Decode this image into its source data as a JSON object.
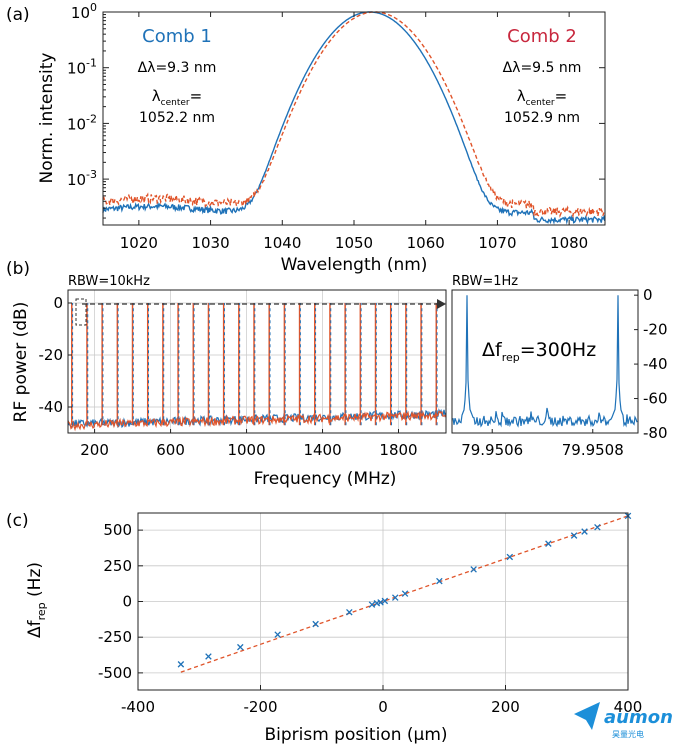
{
  "figure": {
    "panel_a_label": "(a)",
    "panel_b_label": "(b)",
    "panel_c_label": "(c)",
    "colors": {
      "comb1": "#1f72b8",
      "comb2": "#e0542a",
      "comb2_text": "#c8283e",
      "grid": "#c8c8c8",
      "axis": "#222222"
    },
    "watermark": {
      "text": "aumon",
      "subtext": "昊量光电",
      "color": "#1c8fd9"
    }
  },
  "chart_data": [
    {
      "id": "a",
      "type": "line",
      "xlabel": "Wavelength (nm)",
      "ylabel": "Norm. intensity",
      "xlim": [
        1015,
        1085
      ],
      "ylim": [
        0.00015,
        1
      ],
      "yscale": "log",
      "grid": false,
      "xticks": [
        1020,
        1030,
        1040,
        1050,
        1060,
        1070,
        1080
      ],
      "yticks": [
        {
          "value": 1,
          "base": "10",
          "exp": "0"
        },
        {
          "value": 0.1,
          "base": "10",
          "exp": "-1"
        },
        {
          "value": 0.01,
          "base": "10",
          "exp": "-2"
        },
        {
          "value": 0.001,
          "base": "10",
          "exp": "-3"
        }
      ],
      "series": [
        {
          "name": "Comb 1",
          "style": "solid",
          "center": 1052.2,
          "fwhm": 9.3,
          "floor": 0.00025,
          "bandwidth_label": "Δλ=9.3 nm",
          "center_label_main": "λ",
          "center_label_sub": "center",
          "center_label_eq": "=",
          "center_value": "1052.2 nm"
        },
        {
          "name": "Comb 2",
          "style": "dashed",
          "center": 1052.9,
          "fwhm": 9.5,
          "floor": 0.00035,
          "bandwidth_label": "Δλ=9.5 nm",
          "center_label_main": "λ",
          "center_label_sub": "center",
          "center_label_eq": "=",
          "center_value": "1052.9 nm"
        }
      ]
    },
    {
      "id": "b-left",
      "type": "line",
      "annotation": "RBW=10kHz",
      "xlabel": "Frequency (MHz)",
      "ylabel": "RF power (dB)",
      "xlim": [
        60,
        2050
      ],
      "ylim": [
        -50,
        5
      ],
      "grid": true,
      "xticks": [
        200,
        600,
        1000,
        1400,
        1800
      ],
      "yticks": [
        0,
        -20,
        -40
      ],
      "comb_line_spacing_mhz": 79.95,
      "comb_line_count": 25,
      "comb_line_peak_db": 0,
      "noise_floor_db": -47
    },
    {
      "id": "b-right",
      "type": "line",
      "annotation": "RBW=1Hz",
      "xlim": [
        79.95052,
        79.95089
      ],
      "ylim": [
        -80,
        3
      ],
      "grid": false,
      "xticks": [
        79.9506,
        79.9508
      ],
      "xtick_labels": [
        "79.9506",
        "79.9508"
      ],
      "yticks": [
        0,
        -20,
        -40,
        -60,
        -80
      ],
      "peaks_mhz": [
        79.95055,
        79.95085
      ],
      "noise_floor_db": -73,
      "delta_label_main": "Δf",
      "delta_label_sub": "rep",
      "delta_label_value": "=300Hz"
    },
    {
      "id": "c",
      "type": "scatter",
      "xlabel": "Biprism position (μm)",
      "ylabel_main": "Δf",
      "ylabel_sub": "rep",
      "ylabel_unit": " (Hz)",
      "xlim": [
        -400,
        400
      ],
      "ylim": [
        -620,
        620
      ],
      "grid": true,
      "xticks": [
        -400,
        -200,
        0,
        200,
        400
      ],
      "yticks": [
        500,
        250,
        0,
        -250,
        -500
      ],
      "ytick_labels": [
        "500",
        "250",
        "0",
        "-250",
        "-500"
      ],
      "fit": {
        "slope": 1.5,
        "intercept": 0
      },
      "points": [
        {
          "x": -330,
          "y": -440
        },
        {
          "x": -285,
          "y": -385
        },
        {
          "x": -233,
          "y": -320
        },
        {
          "x": -172,
          "y": -232
        },
        {
          "x": -110,
          "y": -158
        },
        {
          "x": -55,
          "y": -75
        },
        {
          "x": -18,
          "y": -22
        },
        {
          "x": -10,
          "y": -12
        },
        {
          "x": -4,
          "y": -6
        },
        {
          "x": 3,
          "y": 4
        },
        {
          "x": 20,
          "y": 27
        },
        {
          "x": 36,
          "y": 55
        },
        {
          "x": 92,
          "y": 143
        },
        {
          "x": 148,
          "y": 225
        },
        {
          "x": 207,
          "y": 312
        },
        {
          "x": 270,
          "y": 405
        },
        {
          "x": 312,
          "y": 462
        },
        {
          "x": 329,
          "y": 490
        },
        {
          "x": 350,
          "y": 520
        },
        {
          "x": 400,
          "y": 600
        }
      ]
    }
  ]
}
